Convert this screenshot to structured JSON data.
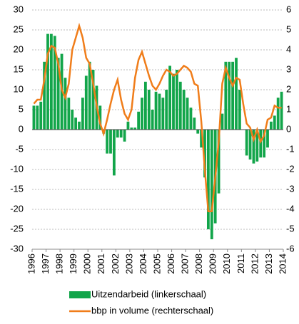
{
  "chart_data": {
    "type": "bar-line",
    "x": [
      1996.125,
      1996.375,
      1996.625,
      1996.875,
      1997.125,
      1997.375,
      1997.625,
      1997.875,
      1998.125,
      1998.375,
      1998.625,
      1998.875,
      1999.125,
      1999.375,
      1999.625,
      1999.875,
      2000.125,
      2000.375,
      2000.625,
      2000.875,
      2001.125,
      2001.375,
      2001.625,
      2001.875,
      2002.125,
      2002.375,
      2002.625,
      2002.875,
      2003.125,
      2003.375,
      2003.625,
      2003.875,
      2004.125,
      2004.375,
      2004.625,
      2004.875,
      2005.125,
      2005.375,
      2005.625,
      2005.875,
      2006.125,
      2006.375,
      2006.625,
      2006.875,
      2007.125,
      2007.375,
      2007.625,
      2007.875,
      2008.125,
      2008.375,
      2008.625,
      2008.875,
      2009.125,
      2009.375,
      2009.625,
      2009.875,
      2010.125,
      2010.375,
      2010.625,
      2010.875,
      2011.125,
      2011.375,
      2011.625,
      2011.875,
      2012.125,
      2012.375,
      2012.625,
      2012.875,
      2013.125,
      2013.375,
      2013.625,
      2013.875
    ],
    "series": [
      {
        "name": "Uitzendarbeid (linkerschaal)",
        "color": "#12a54a",
        "axis": "y",
        "values": [
          6,
          6,
          7,
          17,
          24,
          24,
          23.5,
          18,
          19,
          13,
          8,
          5,
          3,
          2,
          8,
          13.5,
          17,
          15,
          11,
          6,
          -1,
          -6,
          -6,
          -11.5,
          -2,
          -2,
          -3,
          2,
          0.5,
          0.5,
          4.5,
          8,
          12,
          10,
          5,
          9.5,
          9,
          8,
          10,
          16,
          14,
          15,
          12,
          10,
          8,
          5.5,
          3,
          -1,
          -4.5,
          -12,
          -25,
          -27.5,
          -23.5,
          -16,
          4,
          17,
          17,
          17,
          18,
          10,
          0,
          -6.5,
          -7.5,
          -8.5,
          -8,
          -7,
          -7,
          -4.5,
          2,
          3.5,
          8,
          9.5
        ]
      },
      {
        "name": "bbp in volume (rechterschaal)",
        "color": "#f07d1a",
        "axis": "y2",
        "values": [
          1.3,
          1.5,
          1.5,
          2.5,
          3.8,
          4.2,
          4.1,
          3.3,
          2.0,
          1.6,
          2.3,
          4.0,
          4.6,
          5.2,
          4.6,
          3.6,
          3.3,
          2.3,
          1.2,
          0.3,
          -0.2,
          0.5,
          1.3,
          2.0,
          2.5,
          1.5,
          0.8,
          0.5,
          1.0,
          2.6,
          3.5,
          3.9,
          3.3,
          2.7,
          2.2,
          2.0,
          2.3,
          2.7,
          3.0,
          2.9,
          2.7,
          2.8,
          3.0,
          3.2,
          3.1,
          2.9,
          2.3,
          2.2,
          0.4,
          -2.0,
          -4.1,
          -4.1,
          -2.4,
          -0.6,
          2.3,
          3.1,
          2.6,
          2.2,
          2.6,
          2.5,
          1.3,
          0.3,
          0.1,
          -0.5,
          0.0,
          -0.6,
          -0.3,
          0.5,
          0.6,
          1.2,
          1.1,
          1.1
        ]
      }
    ],
    "xlim": [
      1996,
      2014
    ],
    "xticks": [
      1996,
      1997,
      1998,
      1999,
      2000,
      2001,
      2002,
      2003,
      2004,
      2005,
      2006,
      2007,
      2008,
      2009,
      2010,
      2011,
      2012,
      2013,
      2014
    ],
    "ylim": [
      -30,
      30
    ],
    "yticks": [
      30,
      25,
      20,
      15,
      10,
      5,
      0,
      -5,
      -10,
      -15,
      -20,
      -25,
      -30
    ],
    "y2lim": [
      -6,
      6
    ],
    "y2ticks": [
      6,
      5,
      4,
      3,
      2,
      1,
      0,
      -1,
      -2,
      -3,
      -4,
      -5,
      -6
    ],
    "grid": true
  }
}
